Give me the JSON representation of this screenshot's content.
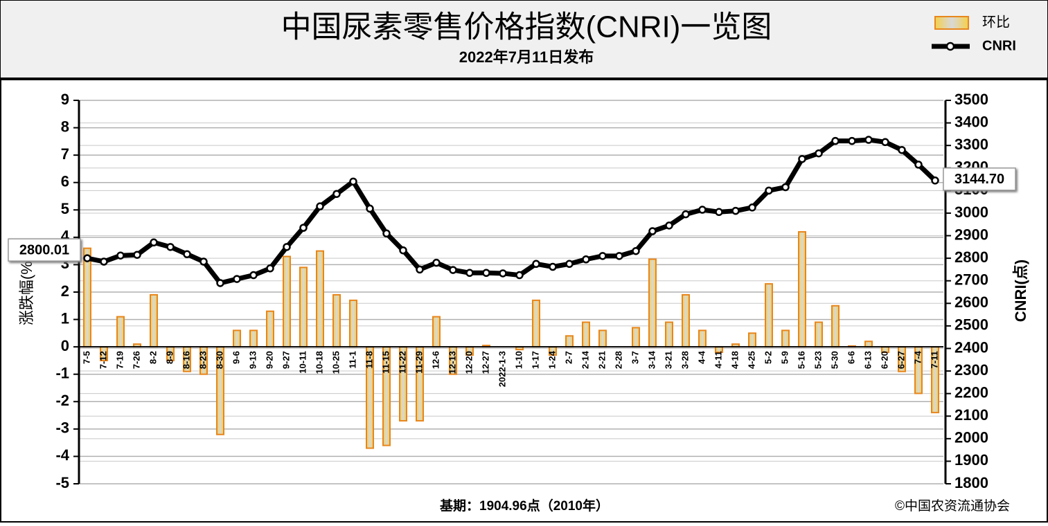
{
  "chart_data": {
    "type": "bar-line",
    "title": "中国尿素零售价格指数(CNRI)一览图",
    "subtitle": "2022年7月11日发布",
    "ylabel": "涨跌幅(%)",
    "y2label": "CNRI(点)",
    "footnote": "基期：1904.96点（2010年）",
    "source": "©中国农资流通协会",
    "categories": [
      "7-5",
      "7-12",
      "7-19",
      "7-26",
      "8-2",
      "8-9",
      "8-16",
      "8-23",
      "8-30",
      "9-6",
      "9-13",
      "9-20",
      "9-27",
      "10-11",
      "10-18",
      "10-25",
      "11-1",
      "11-8",
      "11-15",
      "11-22",
      "11-29",
      "12-6",
      "12-13",
      "12-20",
      "12-27",
      "2022-1-3",
      "1-10",
      "1-17",
      "1-24",
      "2-7",
      "2-14",
      "2-21",
      "2-28",
      "3-7",
      "3-14",
      "3-21",
      "3-28",
      "4-4",
      "4-11",
      "4-18",
      "4-25",
      "5-2",
      "5-9",
      "5-16",
      "5-23",
      "5-30",
      "6-6",
      "6-13",
      "6-20",
      "6-27",
      "7-4",
      "7-11"
    ],
    "series": [
      {
        "name": "环比",
        "type": "bar",
        "color": "#e8861c",
        "values": [
          3.6,
          -0.5,
          1.1,
          0.1,
          1.9,
          -0.5,
          -0.9,
          -1.0,
          -3.2,
          0.6,
          0.6,
          1.3,
          3.3,
          2.9,
          3.5,
          1.9,
          1.7,
          -3.7,
          -3.6,
          -2.7,
          -2.7,
          1.1,
          -1.0,
          -0.3,
          0.05,
          0,
          -0.1,
          1.7,
          -0.3,
          0.4,
          0.9,
          0.6,
          0,
          0.7,
          3.2,
          0.9,
          1.9,
          0.6,
          -0.2,
          0.1,
          0.5,
          2.3,
          0.6,
          4.2,
          0.9,
          1.5,
          0.03,
          0.2,
          -0.2,
          -0.9,
          -1.7,
          -2.4
        ]
      },
      {
        "name": "CNRI",
        "type": "line",
        "axis": "y2",
        "color": "#000000",
        "values": [
          2800.01,
          2785,
          2812,
          2815,
          2870,
          2850,
          2818,
          2785,
          2690,
          2708,
          2725,
          2755,
          2850,
          2935,
          3030,
          3085,
          3140,
          3020,
          2910,
          2835,
          2750,
          2780,
          2748,
          2735,
          2735,
          2733,
          2725,
          2775,
          2762,
          2775,
          2795,
          2810,
          2810,
          2832,
          2920,
          2945,
          2995,
          3015,
          3005,
          3010,
          3025,
          3100,
          3115,
          3240,
          3265,
          3320,
          3320,
          3325,
          3315,
          3280,
          3215,
          3144.7
        ],
        "value_labels": [
          "2800.01",
          null,
          null,
          null,
          null,
          null,
          null,
          null,
          null,
          null,
          null,
          null,
          null,
          null,
          null,
          null,
          null,
          null,
          null,
          null,
          null,
          null,
          null,
          null,
          null,
          null,
          null,
          null,
          null,
          null,
          null,
          null,
          null,
          null,
          null,
          null,
          null,
          null,
          null,
          null,
          null,
          null,
          null,
          null,
          null,
          null,
          null,
          null,
          null,
          null,
          null,
          "3144.70"
        ]
      }
    ],
    "ylim": [
      -5,
      9
    ],
    "yticks": [
      -5,
      -4,
      -3,
      -2,
      -1,
      0,
      1,
      2,
      3,
      4,
      5,
      6,
      7,
      8,
      9
    ],
    "y2lim": [
      1800,
      3500
    ],
    "y2ticks": [
      1800,
      1900,
      2000,
      2100,
      2200,
      2300,
      2400,
      2500,
      2600,
      2700,
      2800,
      2900,
      3000,
      3100,
      3200,
      3300,
      3400,
      3500
    ],
    "grid": true
  }
}
